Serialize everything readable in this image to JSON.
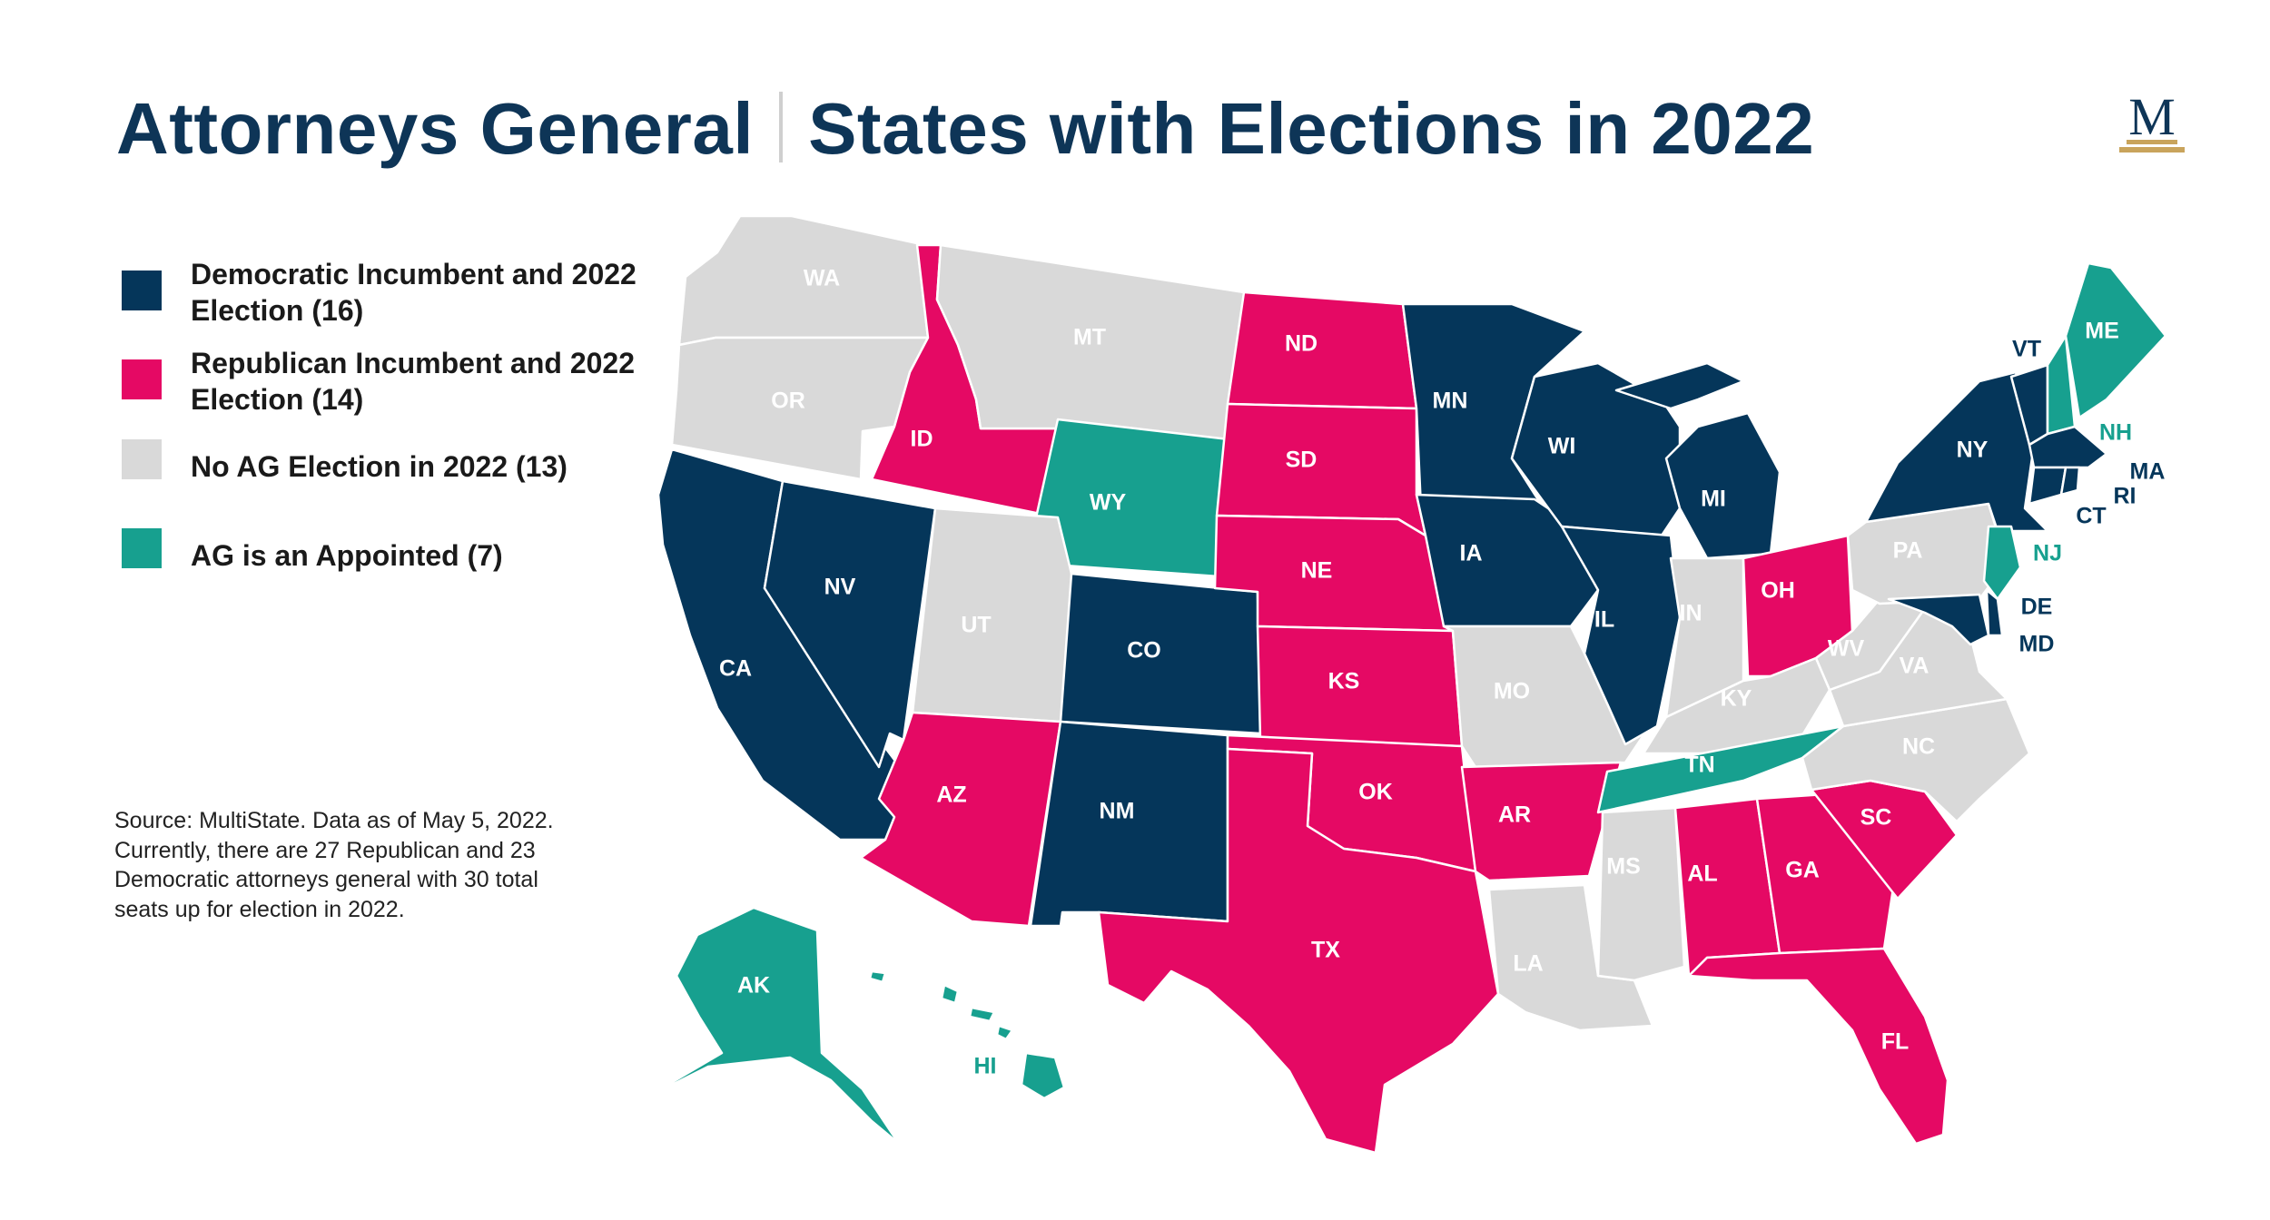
{
  "title": {
    "left": "Attorneys General",
    "right": "States with Elections in 2022"
  },
  "logo": {
    "letter": "M"
  },
  "colors": {
    "dem": "#05365a",
    "rep": "#e50964",
    "none": "#d9d9d9",
    "appointed": "#17a08f",
    "title": "#0e3557",
    "gold": "#c9a45c"
  },
  "legend": [
    {
      "category": "dem",
      "label": "Democratic Incumbent and 2022 Election (16)"
    },
    {
      "category": "rep",
      "label": "Republican Incumbent and 2022 Election (14)"
    },
    {
      "category": "none",
      "label": "No AG Election in 2022 (13)"
    },
    {
      "category": "appointed",
      "label": "AG is an Appointed (7)"
    }
  ],
  "source_note": "Source: MultiState. Data as of May 5, 2022. Currently, there are 27 Republican and 23 Democratic attorneys general with 30 total seats up for election in 2022.",
  "states": {
    "WA": "none",
    "OR": "none",
    "CA": "dem",
    "NV": "dem",
    "ID": "rep",
    "MT": "none",
    "WY": "appointed",
    "UT": "none",
    "AZ": "rep",
    "CO": "dem",
    "NM": "dem",
    "ND": "rep",
    "SD": "rep",
    "NE": "rep",
    "KS": "rep",
    "OK": "rep",
    "TX": "rep",
    "MN": "dem",
    "IA": "dem",
    "MO": "none",
    "AR": "rep",
    "LA": "none",
    "WI": "dem",
    "IL": "dem",
    "MI": "dem",
    "IN": "none",
    "OH": "rep",
    "KY": "none",
    "TN": "appointed",
    "MS": "none",
    "AL": "rep",
    "GA": "rep",
    "FL": "rep",
    "SC": "rep",
    "NC": "none",
    "VA": "none",
    "WV": "none",
    "PA": "none",
    "NY": "dem",
    "VT": "dem",
    "NH": "appointed",
    "ME": "appointed",
    "MA": "dem",
    "RI": "dem",
    "CT": "dem",
    "NJ": "appointed",
    "DE": "dem",
    "MD": "dem",
    "AK": "appointed",
    "HI": "appointed"
  }
}
